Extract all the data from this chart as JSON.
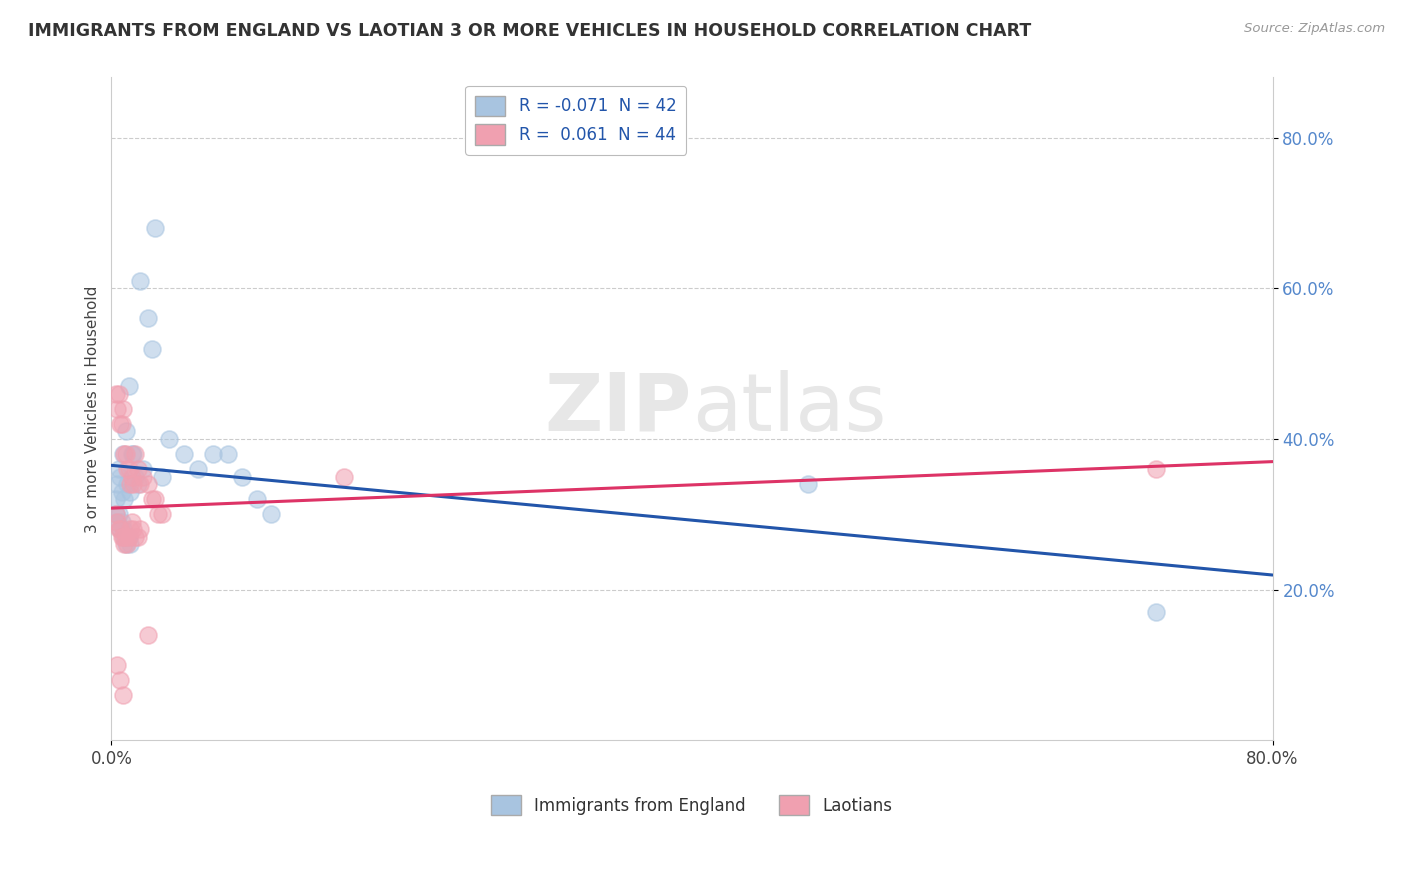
{
  "title": "IMMIGRANTS FROM ENGLAND VS LAOTIAN 3 OR MORE VEHICLES IN HOUSEHOLD CORRELATION CHART",
  "source": "Source: ZipAtlas.com",
  "ylabel": "3 or more Vehicles in Household",
  "ytick_labels": [
    "80.0%",
    "60.0%",
    "40.0%",
    "20.0%"
  ],
  "ytick_positions": [
    0.8,
    0.6,
    0.4,
    0.2
  ],
  "xtick_labels": [
    "0.0%",
    "80.0%"
  ],
  "xtick_positions": [
    0.0,
    0.8
  ],
  "xlim": [
    0.0,
    0.8
  ],
  "ylim": [
    0.0,
    0.88
  ],
  "legend_label1": "R = -0.071  N = 42",
  "legend_label2": "R =  0.061  N = 44",
  "legend_footer1": "Immigrants from England",
  "legend_footer2": "Laotians",
  "blue_color": "#A8C4E0",
  "pink_color": "#F0A0B0",
  "blue_line_color": "#2255AA",
  "pink_line_color": "#DD3366",
  "watermark_zip": "ZIP",
  "watermark_atlas": "atlas",
  "england_x": [
    0.03,
    0.02,
    0.025,
    0.028,
    0.012,
    0.015,
    0.01,
    0.008,
    0.005,
    0.004,
    0.006,
    0.007,
    0.009,
    0.011,
    0.013,
    0.016,
    0.018,
    0.014,
    0.022,
    0.035,
    0.04,
    0.05,
    0.06,
    0.07,
    0.08,
    0.09,
    0.1,
    0.11,
    0.003,
    0.003,
    0.004,
    0.005,
    0.006,
    0.007,
    0.008,
    0.009,
    0.01,
    0.011,
    0.012,
    0.013,
    0.48,
    0.72
  ],
  "england_y": [
    0.68,
    0.61,
    0.56,
    0.52,
    0.47,
    0.38,
    0.41,
    0.38,
    0.36,
    0.34,
    0.35,
    0.33,
    0.32,
    0.34,
    0.33,
    0.35,
    0.34,
    0.38,
    0.36,
    0.35,
    0.4,
    0.38,
    0.36,
    0.38,
    0.38,
    0.35,
    0.32,
    0.3,
    0.32,
    0.3,
    0.29,
    0.3,
    0.28,
    0.29,
    0.28,
    0.27,
    0.26,
    0.27,
    0.27,
    0.26,
    0.34,
    0.17
  ],
  "laotian_x": [
    0.003,
    0.004,
    0.005,
    0.006,
    0.007,
    0.008,
    0.009,
    0.01,
    0.011,
    0.012,
    0.013,
    0.014,
    0.015,
    0.016,
    0.018,
    0.02,
    0.022,
    0.025,
    0.028,
    0.03,
    0.032,
    0.003,
    0.004,
    0.005,
    0.006,
    0.007,
    0.008,
    0.009,
    0.01,
    0.011,
    0.012,
    0.013,
    0.014,
    0.015,
    0.016,
    0.018,
    0.02,
    0.035,
    0.16,
    0.004,
    0.006,
    0.008,
    0.025,
    0.72
  ],
  "laotian_y": [
    0.46,
    0.44,
    0.46,
    0.42,
    0.42,
    0.44,
    0.38,
    0.38,
    0.36,
    0.36,
    0.34,
    0.35,
    0.34,
    0.38,
    0.36,
    0.34,
    0.35,
    0.34,
    0.32,
    0.32,
    0.3,
    0.3,
    0.29,
    0.28,
    0.28,
    0.27,
    0.27,
    0.26,
    0.27,
    0.26,
    0.27,
    0.28,
    0.29,
    0.28,
    0.27,
    0.27,
    0.28,
    0.3,
    0.35,
    0.1,
    0.08,
    0.06,
    0.14,
    0.36
  ]
}
